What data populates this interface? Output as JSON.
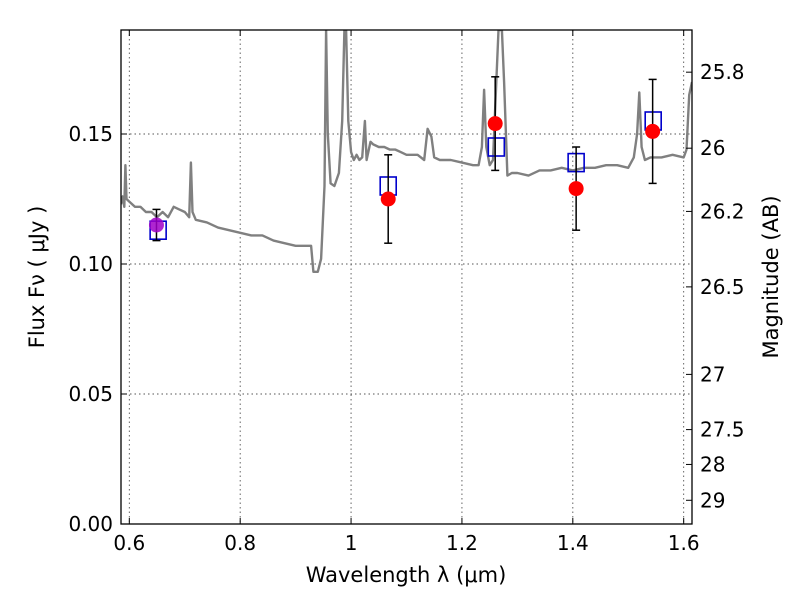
{
  "chart_data": {
    "type": "scatter",
    "title": "",
    "xlabel": "Wavelength  λ (μm)",
    "ylabel": "Flux  Fν  ( μJy )",
    "ylabel_right": "Magnitude (AB)",
    "xlim": [
      0.585,
      1.615
    ],
    "ylim": [
      0.0,
      0.19
    ],
    "grid": true,
    "legend": "none",
    "x_ticks": [
      0.6,
      0.8,
      1.0,
      1.2,
      1.4,
      1.6
    ],
    "x_tick_labels": [
      "0.6",
      "0.8",
      "1",
      "1.2",
      "1.4",
      "1.6"
    ],
    "y_ticks": [
      0.0,
      0.05,
      0.1,
      0.15
    ],
    "y_tick_labels": [
      "0.00",
      "0.05",
      "0.10",
      "0.15"
    ],
    "right_ticks": [
      {
        "mag": 25.8,
        "label": "25.8"
      },
      {
        "mag": 26.0,
        "label": "26"
      },
      {
        "mag": 26.2,
        "label": "26.2"
      },
      {
        "mag": 26.5,
        "label": "26.5"
      },
      {
        "mag": 27.0,
        "label": "27"
      },
      {
        "mag": 27.5,
        "label": "27.5"
      },
      {
        "mag": 28.0,
        "label": "28"
      },
      {
        "mag": 29.0,
        "label": "29"
      }
    ],
    "colors": {
      "model": "#808080",
      "observed": "#ff0000",
      "model_box": "#0000cc",
      "first_point": "#a000c8",
      "error_bar": "#000000",
      "grid": "#555555"
    },
    "series": [
      {
        "kind": "line",
        "points": [
          [
            0.585,
            0.123
          ],
          [
            0.588,
            0.126
          ],
          [
            0.591,
            0.122
          ],
          [
            0.593,
            0.138
          ],
          [
            0.595,
            0.125
          ],
          [
            0.6,
            0.124
          ],
          [
            0.61,
            0.122
          ],
          [
            0.62,
            0.122
          ],
          [
            0.63,
            0.12
          ],
          [
            0.64,
            0.12
          ],
          [
            0.65,
            0.118
          ],
          [
            0.66,
            0.12
          ],
          [
            0.67,
            0.118
          ],
          [
            0.68,
            0.122
          ],
          [
            0.69,
            0.121
          ],
          [
            0.7,
            0.12
          ],
          [
            0.708,
            0.118
          ],
          [
            0.711,
            0.139
          ],
          [
            0.714,
            0.12
          ],
          [
            0.72,
            0.117
          ],
          [
            0.74,
            0.116
          ],
          [
            0.76,
            0.114
          ],
          [
            0.78,
            0.113
          ],
          [
            0.8,
            0.112
          ],
          [
            0.82,
            0.111
          ],
          [
            0.84,
            0.111
          ],
          [
            0.86,
            0.109
          ],
          [
            0.88,
            0.108
          ],
          [
            0.9,
            0.107
          ],
          [
            0.92,
            0.107
          ],
          [
            0.928,
            0.107
          ],
          [
            0.932,
            0.097
          ],
          [
            0.94,
            0.097
          ],
          [
            0.946,
            0.102
          ],
          [
            0.952,
            0.13
          ],
          [
            0.955,
            0.19
          ],
          [
            0.958,
            0.15
          ],
          [
            0.963,
            0.131
          ],
          [
            0.97,
            0.13
          ],
          [
            0.978,
            0.135
          ],
          [
            0.984,
            0.155
          ],
          [
            0.988,
            0.19
          ],
          [
            0.991,
            0.19
          ],
          [
            0.995,
            0.155
          ],
          [
            1.0,
            0.143
          ],
          [
            1.005,
            0.14
          ],
          [
            1.01,
            0.142
          ],
          [
            1.015,
            0.14
          ],
          [
            1.02,
            0.141
          ],
          [
            1.025,
            0.155
          ],
          [
            1.028,
            0.14
          ],
          [
            1.035,
            0.147
          ],
          [
            1.04,
            0.146
          ],
          [
            1.05,
            0.145
          ],
          [
            1.06,
            0.145
          ],
          [
            1.07,
            0.144
          ],
          [
            1.08,
            0.144
          ],
          [
            1.09,
            0.143
          ],
          [
            1.1,
            0.142
          ],
          [
            1.12,
            0.142
          ],
          [
            1.132,
            0.14
          ],
          [
            1.138,
            0.152
          ],
          [
            1.145,
            0.149
          ],
          [
            1.15,
            0.141
          ],
          [
            1.16,
            0.14
          ],
          [
            1.18,
            0.14
          ],
          [
            1.2,
            0.139
          ],
          [
            1.22,
            0.138
          ],
          [
            1.23,
            0.138
          ],
          [
            1.236,
            0.145
          ],
          [
            1.24,
            0.167
          ],
          [
            1.244,
            0.145
          ],
          [
            1.25,
            0.138
          ],
          [
            1.256,
            0.14
          ],
          [
            1.262,
            0.17
          ],
          [
            1.266,
            0.19
          ],
          [
            1.272,
            0.19
          ],
          [
            1.276,
            0.17
          ],
          [
            1.282,
            0.134
          ],
          [
            1.29,
            0.135
          ],
          [
            1.3,
            0.135
          ],
          [
            1.32,
            0.134
          ],
          [
            1.34,
            0.136
          ],
          [
            1.36,
            0.136
          ],
          [
            1.38,
            0.137
          ],
          [
            1.4,
            0.136
          ],
          [
            1.42,
            0.137
          ],
          [
            1.44,
            0.137
          ],
          [
            1.46,
            0.138
          ],
          [
            1.48,
            0.138
          ],
          [
            1.5,
            0.137
          ],
          [
            1.51,
            0.141
          ],
          [
            1.516,
            0.15
          ],
          [
            1.52,
            0.166
          ],
          [
            1.524,
            0.145
          ],
          [
            1.53,
            0.14
          ],
          [
            1.54,
            0.141
          ],
          [
            1.56,
            0.141
          ],
          [
            1.58,
            0.142
          ],
          [
            1.6,
            0.141
          ],
          [
            1.605,
            0.144
          ],
          [
            1.61,
            0.165
          ],
          [
            1.615,
            0.17
          ]
        ]
      },
      {
        "kind": "model_box",
        "points": [
          [
            0.652,
            0.113
          ],
          [
            1.067,
            0.13
          ],
          [
            1.262,
            0.145
          ],
          [
            1.406,
            0.139
          ],
          [
            1.545,
            0.155
          ]
        ]
      },
      {
        "kind": "observed",
        "points": [
          {
            "x": 0.649,
            "y": 0.115,
            "yerr": 0.006
          },
          {
            "x": 1.067,
            "y": 0.125,
            "yerr": 0.017
          },
          {
            "x": 1.26,
            "y": 0.154,
            "yerr": 0.018
          },
          {
            "x": 1.406,
            "y": 0.129,
            "yerr": 0.016
          },
          {
            "x": 1.544,
            "y": 0.151,
            "yerr": 0.02
          }
        ]
      }
    ]
  }
}
